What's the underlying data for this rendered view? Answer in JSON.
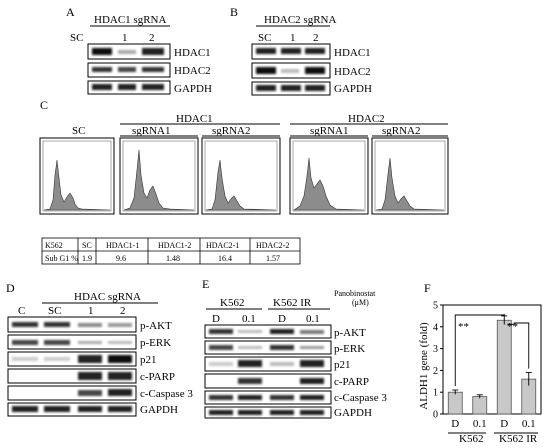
{
  "panel_a": {
    "letter": "A",
    "title": "HDAC1 sgRNA",
    "lanes": [
      "SC",
      "1",
      "2"
    ],
    "rows": [
      "HDAC1",
      "HDAC2",
      "GAPDH"
    ]
  },
  "panel_b": {
    "letter": "B",
    "title": "HDAC2 sgRNA",
    "lanes": [
      "SC",
      "1",
      "2"
    ],
    "rows": [
      "HDAC1",
      "HDAC2",
      "GAPDH"
    ]
  },
  "panel_c": {
    "letter": "C",
    "sc_label": "SC",
    "group1": "HDAC1",
    "group2": "HDAC2",
    "sg1": "sgRNA1",
    "sg2": "sgRNA2",
    "table": {
      "header": [
        "K562",
        "SC",
        "HDAC1-1",
        "HDAC1-2",
        "HDAC2-1",
        "HDAC2-2"
      ],
      "row": [
        "Sub G1 %",
        "1.9",
        "9.6",
        "1.48",
        "16.4",
        "1.57"
      ]
    }
  },
  "panel_d": {
    "letter": "D",
    "title": "HDAC sgRNA",
    "lanes": [
      "C",
      "SC",
      "1",
      "2"
    ],
    "rows": [
      "p-AKT",
      "p-ERK",
      "p21",
      "c-PARP",
      "c-Caspase 3",
      "GAPDH"
    ]
  },
  "panel_e": {
    "letter": "E",
    "groups": [
      "K562",
      "K562 IR"
    ],
    "drug": "Panobinostat",
    "unit": "(μM)",
    "lanes": [
      "D",
      "0.1",
      "D",
      "0.1"
    ],
    "rows": [
      "p-AKT",
      "p-ERK",
      "p21",
      "c-PARP",
      "c-Caspase 3",
      "GAPDH"
    ]
  },
  "panel_f": {
    "letter": "F",
    "sig1": "**",
    "sig2": "**",
    "groups": [
      "K562",
      "K562 IR"
    ]
  },
  "chart_data": {
    "type": "bar",
    "ylabel": "ALDH1 gene (fold)",
    "ylim": [
      0,
      5
    ],
    "yticks": [
      0,
      1,
      2,
      3,
      4,
      5
    ],
    "categories": [
      "D",
      "0.1",
      "D",
      "0.1"
    ],
    "values": [
      1.0,
      0.8,
      4.3,
      1.6
    ],
    "errors": [
      0.1,
      0.08,
      0.2,
      0.3
    ],
    "bar_color": "#c8c8c8"
  }
}
